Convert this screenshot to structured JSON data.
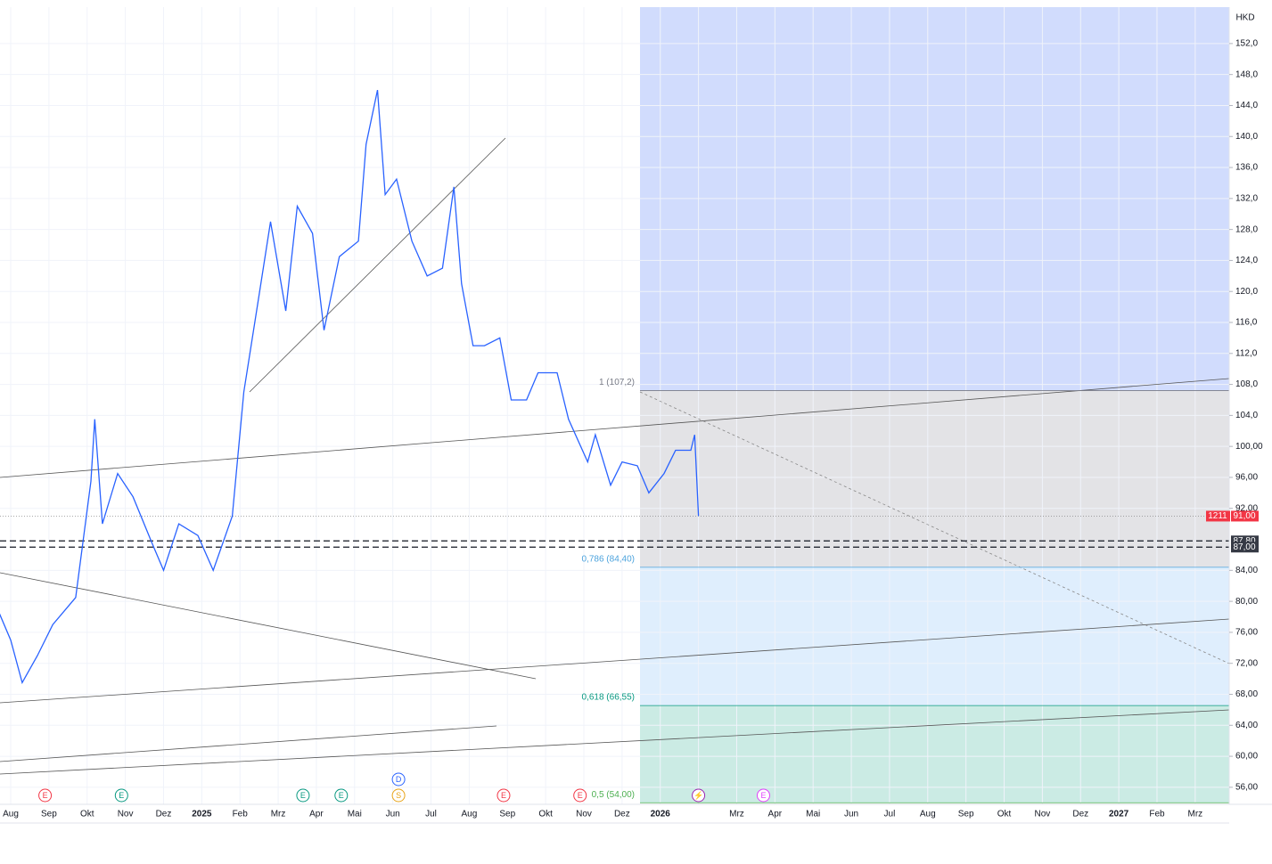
{
  "chart_data": {
    "type": "line",
    "currency": "HKD",
    "color": "#2962ff",
    "x": [
      -0.3,
      0,
      0.3,
      0.7,
      1.1,
      1.7,
      2.1,
      2.2,
      2.4,
      2.8,
      3.2,
      3.7,
      4.0,
      4.4,
      4.9,
      5.3,
      5.8,
      6.1,
      6.5,
      6.8,
      7.2,
      7.5,
      7.9,
      8.2,
      8.6,
      9.1,
      9.3,
      9.6,
      9.8,
      10.1,
      10.5,
      10.9,
      11.3,
      11.6,
      11.8,
      12.1,
      12.4,
      12.8,
      13.1,
      13.5,
      13.8,
      14.3,
      14.6,
      15.1,
      15.3,
      15.7,
      16.0,
      16.4,
      16.7,
      17.1,
      17.4,
      17.8,
      17.9,
      18.0
    ],
    "values": [
      78.5,
      75,
      69.5,
      73,
      77,
      80.5,
      95.5,
      103.5,
      90,
      96.5,
      93.5,
      87.5,
      84,
      90,
      88.5,
      84,
      91,
      107,
      119.5,
      129,
      117.5,
      131,
      127.5,
      115,
      124.5,
      126.5,
      139,
      146,
      132.5,
      134.5,
      126.5,
      122,
      123,
      133.5,
      121,
      113,
      113,
      114,
      106,
      106,
      109.5,
      109.5,
      103.5,
      98,
      101.5,
      95,
      98,
      97.5,
      94,
      96.5,
      99.5,
      99.5,
      101.5,
      91
    ],
    "categories": [
      "Aug",
      "Sep",
      "Okt",
      "Nov",
      "Dez",
      "2025",
      "Feb",
      "Mrz",
      "Apr",
      "Mai",
      "Jun",
      "Jul",
      "Aug",
      "Sep",
      "Okt",
      "Nov",
      "Dez",
      "2026",
      null,
      "Mrz",
      "Apr",
      "Mai",
      "Jun",
      "Jul",
      "Aug",
      "Sep",
      "Okt",
      "Nov",
      "Dez",
      "2027",
      "Feb",
      "Mrz"
    ],
    "xlim": [
      -0.28,
      31.89
    ],
    "ylim": [
      53.8,
      156.7
    ],
    "yticks": [
      {
        "value": 152,
        "label": "152,0"
      },
      {
        "value": 148,
        "label": "148,0"
      },
      {
        "value": 144,
        "label": "144,0"
      },
      {
        "value": 140,
        "label": "140,0"
      },
      {
        "value": 136,
        "label": "136,0"
      },
      {
        "value": 132,
        "label": "132,0"
      },
      {
        "value": 128,
        "label": "128,0"
      },
      {
        "value": 124,
        "label": "124,0"
      },
      {
        "value": 120,
        "label": "120,0"
      },
      {
        "value": 116,
        "label": "116,0"
      },
      {
        "value": 112,
        "label": "112,0"
      },
      {
        "value": 108,
        "label": "108,0"
      },
      {
        "value": 104,
        "label": "104,0"
      },
      {
        "value": 100,
        "label": "100,00"
      },
      {
        "value": 96,
        "label": "96,00"
      },
      {
        "value": 92,
        "label": "92,00"
      },
      {
        "value": 84,
        "label": "84,00"
      },
      {
        "value": 80,
        "label": "80,00"
      },
      {
        "value": 76,
        "label": "76,00"
      },
      {
        "value": 72,
        "label": "72,00"
      },
      {
        "value": 68,
        "label": "68,00"
      },
      {
        "value": 64,
        "label": "64,00"
      },
      {
        "value": 60,
        "label": "60,00"
      },
      {
        "value": 56,
        "label": "56,00"
      }
    ],
    "grid": true,
    "fib_top_color": "#d1dcfd",
    "fib_levels": [
      {
        "value": 107.2,
        "label": "1 (107,2)",
        "color": "#787b86",
        "zone_color": "#e3e3e6"
      },
      {
        "value": 84.4,
        "label": "0,786 (84,40)",
        "color": "#4ca3dd",
        "zone_color": "#dfeefd"
      },
      {
        "value": 66.55,
        "label": "0,618 (66,55)",
        "color": "#089981",
        "zone_color": "#cbebe4"
      },
      {
        "value": 54,
        "label": "0,5 (54,00)",
        "color": "#4caf50"
      }
    ],
    "last_price": {
      "value": 91,
      "label": "91,00",
      "countdown": "1211",
      "color": "#f23645"
    },
    "levels": [
      {
        "value": 87.8,
        "label": "87,80"
      },
      {
        "value": 87,
        "label": "87,00"
      }
    ],
    "events": [
      {
        "x": 0.9,
        "text": "E",
        "color": "#f23645"
      },
      {
        "x": 2.9,
        "text": "E",
        "color": "#089981"
      },
      {
        "x": 7.65,
        "text": "E",
        "color": "#089981"
      },
      {
        "x": 8.65,
        "text": "E",
        "color": "#089981"
      },
      {
        "x": 10.15,
        "text": "S",
        "color": "#e8a317"
      },
      {
        "x": 10.15,
        "text": "D",
        "color": "#2962ff"
      },
      {
        "x": 12.9,
        "text": "E",
        "color": "#f23645"
      },
      {
        "x": 14.9,
        "text": "E",
        "color": "#f23645"
      },
      {
        "x": 18.0,
        "text": "⚡",
        "color": "#9c27b0"
      },
      {
        "x": 19.7,
        "text": "E",
        "color": "#e040fb"
      }
    ]
  }
}
